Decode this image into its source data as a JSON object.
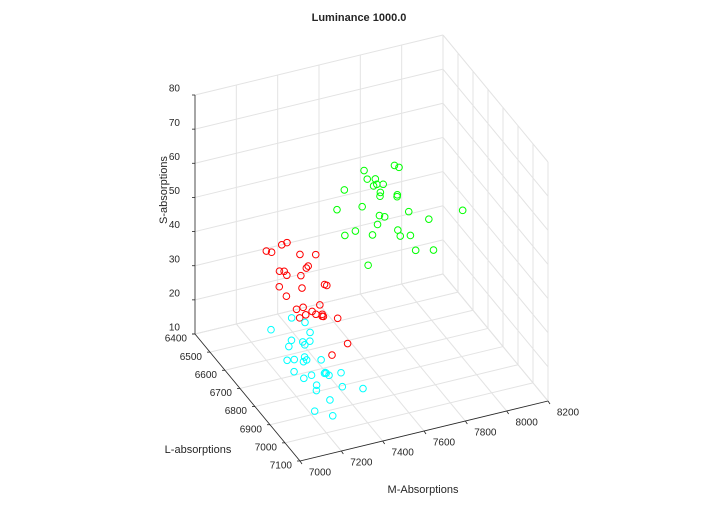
{
  "chart_data": {
    "type": "scatter3d",
    "title": "Luminance 1000.0",
    "xlabel": "M-Absorptions",
    "ylabel": "L-absorptions",
    "zlabel": "S-absorptions",
    "xlim": [
      7000,
      8200
    ],
    "ylim": [
      6400,
      7100
    ],
    "zlim": [
      10,
      80
    ],
    "xticks": [
      7000,
      7200,
      7400,
      7600,
      7800,
      8000,
      8200
    ],
    "yticks": [
      6400,
      6500,
      6600,
      6700,
      6800,
      6900,
      7000,
      7100
    ],
    "zticks": [
      10,
      20,
      30,
      40,
      50,
      60,
      70,
      80
    ],
    "grid": true,
    "series": [
      {
        "color": "#00ff00",
        "x": [
          7700,
          7750,
          7800,
          7650,
          7850,
          7720,
          7780,
          7900,
          7600,
          7680,
          7820,
          7750,
          7950,
          7700,
          7800,
          7580,
          7870,
          7730,
          7660,
          7810,
          7760,
          8150,
          7690,
          7840,
          7620,
          7900,
          7740,
          7790,
          7710,
          7860
        ],
        "y": [
          6550,
          6600,
          6650,
          6500,
          6700,
          6620,
          6580,
          6750,
          6520,
          6680,
          6600,
          6550,
          6650,
          6700,
          6500,
          6600,
          6550,
          6630,
          6560,
          6720,
          6480,
          6600,
          6640,
          6590,
          6700,
          6520,
          6610,
          6680,
          6570,
          6640
        ],
        "z": [
          45,
          50,
          42,
          48,
          38,
          55,
          52,
          40,
          44,
          47,
          58,
          36,
          43,
          50,
          49,
          41,
          46,
          53,
          39,
          44,
          51,
          40,
          56,
          48,
          37,
          52,
          45,
          42,
          54,
          46
        ]
      },
      {
        "color": "#ff0000",
        "x": [
          7300,
          7250,
          7350,
          7200,
          7400,
          7280,
          7320,
          7180,
          7420,
          7260,
          7340,
          7300,
          7220,
          7380,
          7290,
          7310,
          7240,
          7360,
          7270,
          7330,
          7210,
          7390,
          7300,
          7260,
          7350,
          7190,
          7320,
          7280,
          7410,
          7230
        ],
        "y": [
          6700,
          6650,
          6750,
          6600,
          6800,
          6720,
          6680,
          6850,
          6700,
          6620,
          6780,
          6900,
          6660,
          6740,
          6700,
          6820,
          6580,
          6760,
          6640,
          6700,
          6720,
          6880,
          6600,
          6780,
          6660,
          6700,
          6740,
          6820,
          6640,
          6760
        ],
        "z": [
          35,
          38,
          32,
          42,
          30,
          40,
          28,
          36,
          34,
          44,
          31,
          26,
          39,
          37,
          45,
          33,
          40,
          29,
          36,
          41,
          35,
          27,
          43,
          32,
          38,
          37,
          30,
          34,
          40,
          33
        ]
      },
      {
        "color": "#00ffff",
        "x": [
          7250,
          7200,
          7300,
          7150,
          7350,
          7220,
          7280,
          7180,
          7320,
          7260,
          7240,
          7300,
          7160,
          7340,
          7210,
          7270,
          7230,
          7310,
          7190,
          7290,
          7250,
          7380,
          7170,
          7330,
          7260,
          7220,
          7300,
          7240,
          7450,
          7200
        ],
        "y": [
          6800,
          6750,
          6850,
          6700,
          6900,
          6820,
          6780,
          6950,
          6800,
          6760,
          6880,
          6720,
          6840,
          6800,
          6920,
          6760,
          6860,
          6740,
          6800,
          6900,
          6700,
          6850,
          6780,
          6820,
          6960,
          6740,
          6880,
          6800,
          6900,
          6850
        ],
        "z": [
          20,
          22,
          18,
          25,
          16,
          21,
          24,
          14,
          19,
          23,
          17,
          26,
          20,
          15,
          18,
          22,
          19,
          24,
          21,
          13,
          27,
          17,
          20,
          16,
          12,
          23,
          19,
          21,
          14,
          18
        ]
      }
    ]
  }
}
